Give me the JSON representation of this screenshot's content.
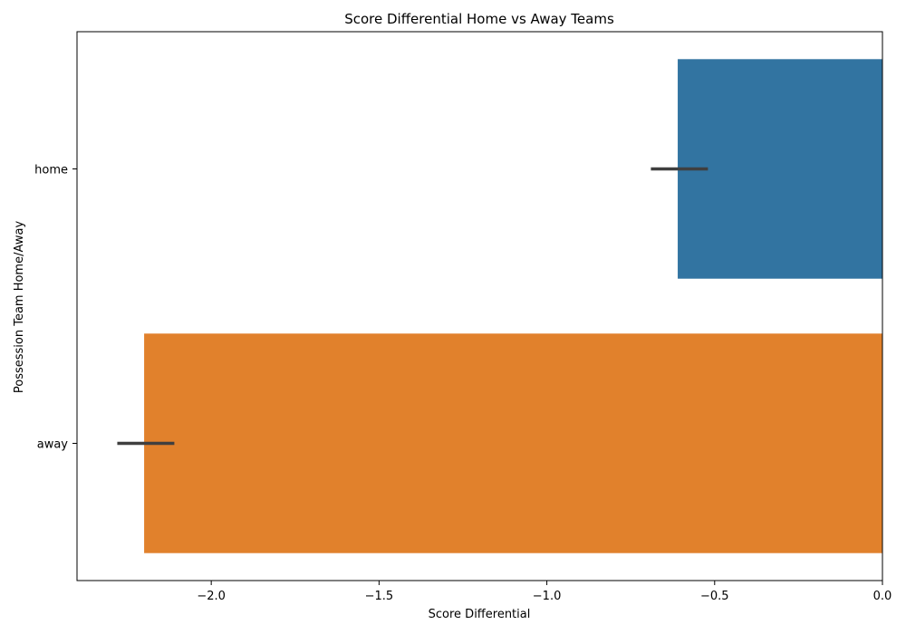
{
  "chart_data": {
    "type": "bar",
    "orientation": "horizontal",
    "title": "Score Differential Home vs Away Teams",
    "xlabel": "Score Differential",
    "ylabel": "Possession Team Home/Away",
    "categories": [
      "home",
      "away"
    ],
    "values": [
      -0.61,
      -2.2
    ],
    "error_bars": [
      [
        -0.69,
        -0.52
      ],
      [
        -2.28,
        -2.11
      ]
    ],
    "colors": [
      "#3274a1",
      "#e1812c"
    ],
    "error_color": "#3f3f3f",
    "xlim": [
      -2.4,
      0.0
    ],
    "xticks": [
      -2.0,
      -1.5,
      -1.0,
      -0.5,
      0.0
    ],
    "xtick_labels": [
      "−2.0",
      "−1.5",
      "−1.0",
      "−0.5",
      "0.0"
    ],
    "grid": false,
    "legend": "none"
  }
}
